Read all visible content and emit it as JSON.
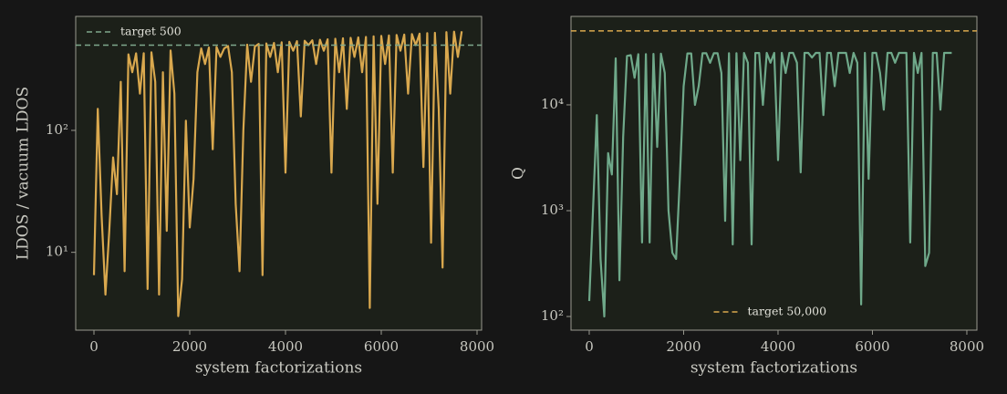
{
  "chart_data": [
    {
      "type": "line",
      "xlabel": "system factorizations",
      "ylabel": "LDOS / vacuum LDOS",
      "yscale": "log",
      "xlim": [
        -381,
        8095
      ],
      "ylim": [
        2.3,
        860
      ],
      "xticks": [
        0,
        2000,
        4000,
        6000,
        8000
      ],
      "yticks": [
        {
          "value": 10,
          "label": "10¹"
        },
        {
          "value": 100,
          "label": "10²"
        }
      ],
      "legend": "upper left",
      "hlines": [
        {
          "value": 500,
          "label": "target 500",
          "color": "#7fa88c"
        }
      ],
      "x": [
        0,
        80,
        160,
        240,
        320,
        400,
        480,
        560,
        640,
        720,
        800,
        880,
        960,
        1040,
        1120,
        1200,
        1280,
        1360,
        1440,
        1520,
        1600,
        1680,
        1760,
        1840,
        1920,
        2000,
        2080,
        2160,
        2240,
        2320,
        2400,
        2480,
        2560,
        2640,
        2720,
        2800,
        2880,
        2960,
        3040,
        3120,
        3200,
        3280,
        3360,
        3440,
        3520,
        3600,
        3680,
        3760,
        3840,
        3920,
        4000,
        4080,
        4160,
        4240,
        4320,
        4400,
        4480,
        4560,
        4640,
        4720,
        4800,
        4880,
        4960,
        5040,
        5120,
        5200,
        5280,
        5360,
        5440,
        5520,
        5600,
        5680,
        5760,
        5840,
        5920,
        6000,
        6080,
        6160,
        6240,
        6320,
        6400,
        6480,
        6560,
        6640,
        6720,
        6800,
        6880,
        6960,
        7040,
        7120,
        7200,
        7280,
        7360,
        7440,
        7520,
        7600,
        7680
      ],
      "series": [
        {
          "color": "#d9a84e",
          "values": [
            6.5,
            150,
            20,
            4.5,
            15,
            60,
            30,
            250,
            7,
            420,
            300,
            428,
            200,
            430,
            5,
            436,
            250,
            4.5,
            300,
            15,
            452,
            200,
            3,
            6,
            120,
            16,
            40,
            300,
            470,
            350,
            478,
            70,
            483,
            400,
            470,
            491,
            300,
            25,
            7,
            100,
            504,
            250,
            487,
            512,
            6.5,
            517,
            400,
            522,
            300,
            527,
            45,
            532,
            450,
            538,
            130,
            543,
            500,
            548,
            350,
            553,
            450,
            558,
            45,
            564,
            300,
            569,
            150,
            574,
            400,
            579,
            300,
            584,
            3.5,
            590,
            25,
            595,
            350,
            600,
            45,
            605,
            450,
            610,
            200,
            616,
            500,
            621,
            50,
            626,
            12,
            631,
            150,
            7.5,
            640,
            200,
            645,
            400,
            650
          ]
        }
      ]
    },
    {
      "type": "line",
      "xlabel": "system factorizations",
      "ylabel": "Q",
      "yscale": "log",
      "xlim": [
        -386,
        8213
      ],
      "ylim": [
        74.3,
        68500
      ],
      "xticks": [
        0,
        2000,
        4000,
        6000,
        8000
      ],
      "yticks": [
        {
          "value": 100,
          "label": "10²"
        },
        {
          "value": 1000,
          "label": "10³"
        },
        {
          "value": 10000,
          "label": "10⁴"
        }
      ],
      "legend": "lower center",
      "hlines": [
        {
          "value": 50000,
          "label": "target 50,000",
          "color": "#d9a84e"
        }
      ],
      "x": [
        0,
        80,
        160,
        240,
        320,
        400,
        480,
        560,
        640,
        720,
        800,
        880,
        960,
        1040,
        1120,
        1200,
        1280,
        1360,
        1440,
        1520,
        1600,
        1680,
        1760,
        1840,
        1920,
        2000,
        2080,
        2160,
        2240,
        2320,
        2400,
        2480,
        2560,
        2640,
        2720,
        2800,
        2880,
        2960,
        3040,
        3120,
        3200,
        3280,
        3360,
        3440,
        3520,
        3600,
        3680,
        3760,
        3840,
        3920,
        4000,
        4080,
        4160,
        4240,
        4320,
        4400,
        4480,
        4560,
        4640,
        4720,
        4800,
        4880,
        4960,
        5040,
        5120,
        5200,
        5280,
        5360,
        5440,
        5520,
        5600,
        5680,
        5760,
        5840,
        5920,
        6000,
        6080,
        6160,
        6240,
        6320,
        6400,
        6480,
        6560,
        6640,
        6720,
        6800,
        6880,
        6960,
        7040,
        7120,
        7200,
        7280,
        7360,
        7440,
        7520,
        7600,
        7680
      ],
      "series": [
        {
          "color": "#6fa98a",
          "values": [
            140,
            1000,
            8000,
            350,
            100,
            3500,
            2200,
            27500,
            220,
            5000,
            29000,
            29500,
            18000,
            30100,
            500,
            30200,
            500,
            30300,
            4000,
            30400,
            20000,
            1000,
            400,
            350,
            2000,
            15000,
            30600,
            30600,
            10000,
            15000,
            30700,
            30700,
            25000,
            30700,
            30800,
            20000,
            800,
            30800,
            480,
            30800,
            3000,
            30900,
            25000,
            480,
            30900,
            30900,
            10000,
            31000,
            25000,
            31000,
            3000,
            31000,
            20000,
            31000,
            31000,
            25000,
            2300,
            31000,
            31000,
            28000,
            31000,
            31000,
            8000,
            31000,
            31000,
            15000,
            31000,
            31000,
            31000,
            20000,
            31000,
            25000,
            130,
            31000,
            2000,
            31000,
            31000,
            20000,
            9000,
            31000,
            31000,
            25000,
            31000,
            31000,
            31000,
            500,
            31000,
            20000,
            31000,
            300,
            400,
            31000,
            31000,
            9000,
            31000,
            31000,
            31000
          ]
        }
      ]
    }
  ]
}
